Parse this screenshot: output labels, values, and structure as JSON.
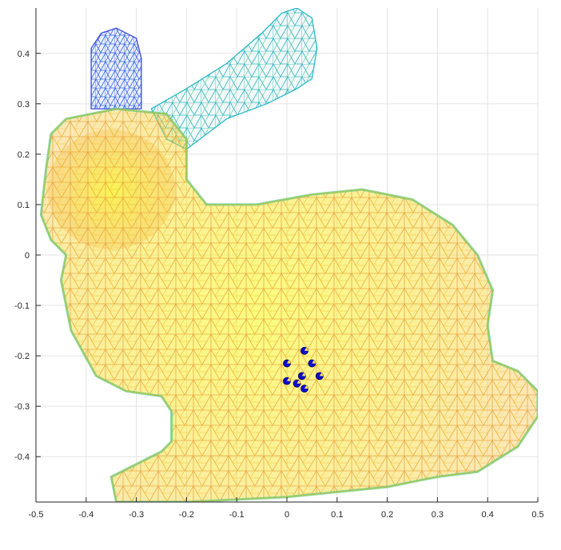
{
  "chart_data": {
    "type": "mesh",
    "title": "",
    "xlabel": "",
    "ylabel": "",
    "xlim": [
      -0.5,
      0.5
    ],
    "ylim": [
      -0.49,
      0.49
    ],
    "grid": true,
    "x_ticks": [
      "-0.5",
      "-0.4",
      "-0.3",
      "-0.2",
      "-0.1",
      "0",
      "0.1",
      "0.2",
      "0.3",
      "0.4",
      "0.5"
    ],
    "y_ticks": [
      "0.4",
      "0.3",
      "0.2",
      "0.1",
      "0",
      "-0.1",
      "-0.2",
      "-0.3",
      "-0.4"
    ],
    "mesh": {
      "colormap": "parula",
      "colors": [
        "#3e26a8",
        "#2f7efc",
        "#22b5cd",
        "#5fcb8a",
        "#c0c130",
        "#f5b83d",
        "#f6dc22",
        "#f9fb15"
      ],
      "outlines": {
        "body": [
          [
            -0.44,
            0.27
          ],
          [
            -0.34,
            0.29
          ],
          [
            -0.24,
            0.28
          ],
          [
            -0.2,
            0.23
          ],
          [
            -0.2,
            0.15
          ],
          [
            -0.16,
            0.1
          ],
          [
            -0.06,
            0.1
          ],
          [
            0.05,
            0.12
          ],
          [
            0.15,
            0.13
          ],
          [
            0.25,
            0.11
          ],
          [
            0.33,
            0.06
          ],
          [
            0.38,
            0.0
          ],
          [
            0.41,
            -0.07
          ],
          [
            0.4,
            -0.14
          ],
          [
            0.41,
            -0.21
          ],
          [
            0.46,
            -0.23
          ],
          [
            0.5,
            -0.27
          ],
          [
            0.5,
            -0.32
          ],
          [
            0.46,
            -0.38
          ],
          [
            0.38,
            -0.43
          ],
          [
            0.3,
            -0.44
          ],
          [
            0.2,
            -0.46
          ],
          [
            0.0,
            -0.48
          ],
          [
            -0.2,
            -0.49
          ],
          [
            -0.34,
            -0.49
          ],
          [
            -0.35,
            -0.44
          ],
          [
            -0.25,
            -0.39
          ],
          [
            -0.23,
            -0.37
          ],
          [
            -0.23,
            -0.31
          ],
          [
            -0.25,
            -0.28
          ],
          [
            -0.32,
            -0.27
          ],
          [
            -0.38,
            -0.24
          ],
          [
            -0.43,
            -0.15
          ],
          [
            -0.45,
            -0.05
          ],
          [
            -0.44,
            0.0
          ],
          [
            -0.47,
            0.03
          ],
          [
            -0.49,
            0.08
          ],
          [
            -0.48,
            0.17
          ],
          [
            -0.47,
            0.24
          ]
        ],
        "ear_right": [
          [
            -0.27,
            0.29
          ],
          [
            -0.2,
            0.33
          ],
          [
            -0.12,
            0.38
          ],
          [
            -0.05,
            0.44
          ],
          [
            -0.01,
            0.48
          ],
          [
            0.02,
            0.49
          ],
          [
            0.05,
            0.47
          ],
          [
            0.06,
            0.41
          ],
          [
            0.05,
            0.35
          ],
          [
            0.02,
            0.33
          ],
          [
            -0.04,
            0.3
          ],
          [
            -0.12,
            0.27
          ],
          [
            -0.2,
            0.21
          ],
          [
            -0.24,
            0.23
          ]
        ],
        "ear_left": [
          [
            -0.39,
            0.29
          ],
          [
            -0.39,
            0.41
          ],
          [
            -0.37,
            0.44
          ],
          [
            -0.34,
            0.45
          ],
          [
            -0.3,
            0.43
          ],
          [
            -0.29,
            0.39
          ],
          [
            -0.29,
            0.29
          ]
        ]
      }
    },
    "markers": [
      {
        "x": 0.035,
        "y": -0.19
      },
      {
        "x": 0.0,
        "y": -0.215
      },
      {
        "x": 0.05,
        "y": -0.215
      },
      {
        "x": 0.03,
        "y": -0.24
      },
      {
        "x": 0.065,
        "y": -0.24
      },
      {
        "x": 0.0,
        "y": -0.25
      },
      {
        "x": 0.02,
        "y": -0.255
      },
      {
        "x": 0.035,
        "y": -0.265
      }
    ],
    "marker_color": "#0d0dc9",
    "marker_highlight": "#ffe45c"
  }
}
